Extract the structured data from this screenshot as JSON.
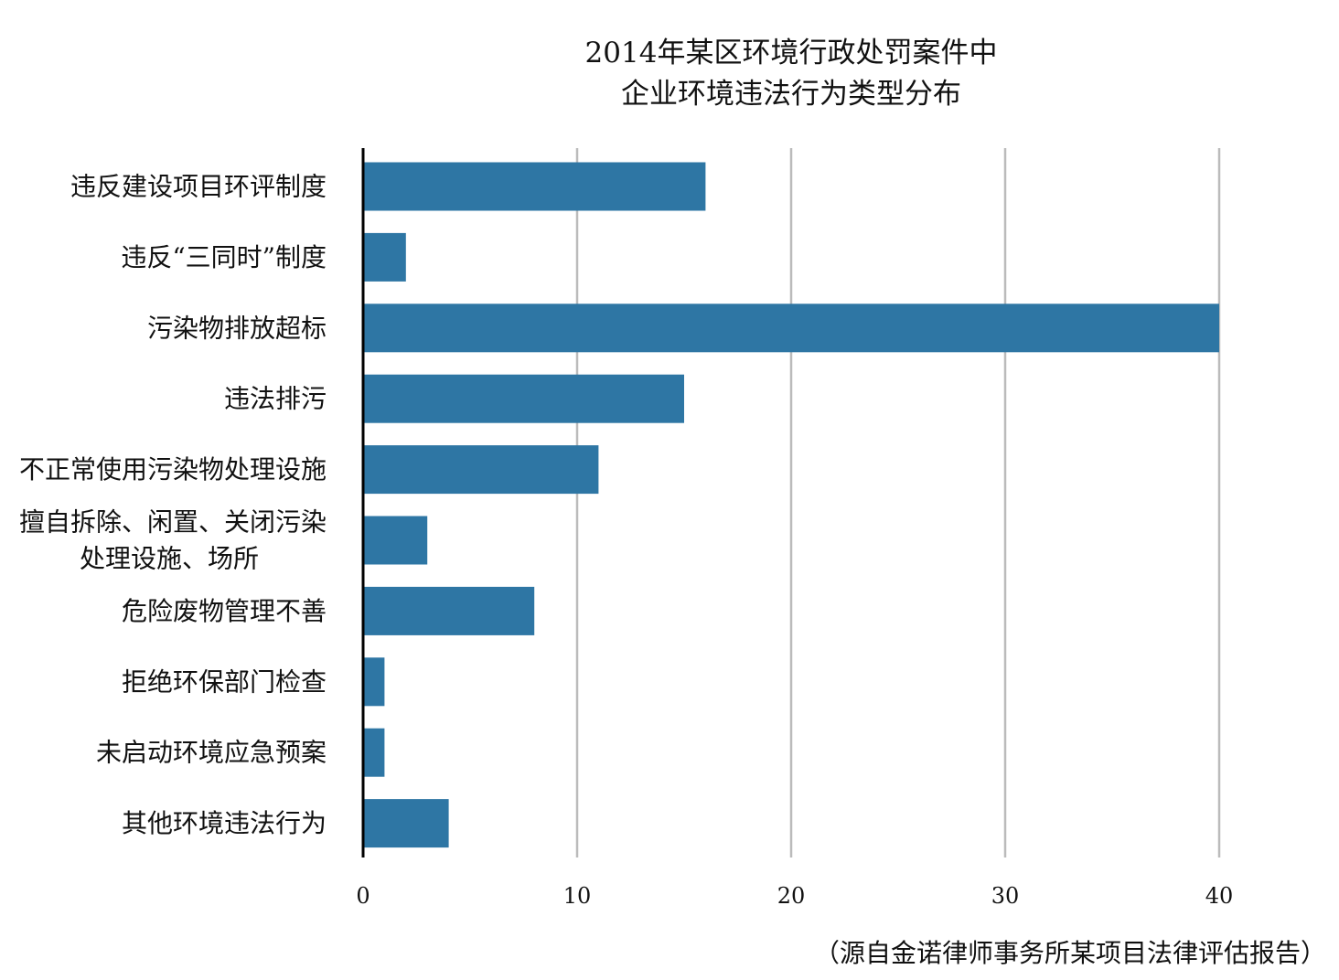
{
  "chart_data": {
    "type": "bar",
    "orientation": "horizontal",
    "title_lines": [
      "2014年某区环境行政处罚案件中",
      "企业环境违法行为类型分布"
    ],
    "xlabel": "",
    "ylabel": "",
    "categories": [
      [
        "违反建设项目环评制度"
      ],
      [
        "违反“三同时”制度"
      ],
      [
        "污染物排放超标"
      ],
      [
        "违法排污"
      ],
      [
        "不正常使用污染物处理设施"
      ],
      [
        "擅自拆除、闲置、关闭污染",
        "处理设施、场所"
      ],
      [
        "危险废物管理不善"
      ],
      [
        "拒绝环保部门检查"
      ],
      [
        "未启动环境应急预案"
      ],
      [
        "其他环境违法行为"
      ]
    ],
    "values": [
      16,
      2,
      40,
      15,
      11,
      3,
      8,
      1,
      1,
      4
    ],
    "xlim": [
      0,
      40
    ],
    "xticks": [
      0,
      10,
      20,
      30,
      40
    ],
    "grid": "vertical",
    "legend": "none",
    "bar_color": "#2e76a4",
    "grid_color": "#bbbbbb",
    "axis_color": "#000000"
  },
  "source_note": "（源自金诺律师事务所某项目法律评估报告）"
}
